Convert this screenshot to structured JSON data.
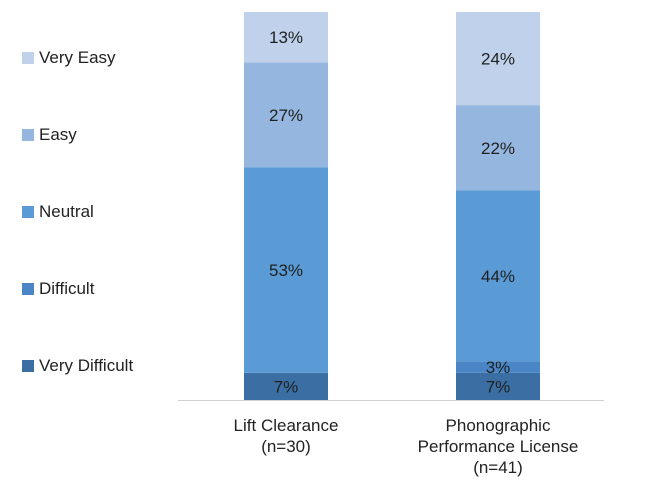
{
  "chart_data": {
    "type": "bar",
    "stacked": true,
    "normalized": true,
    "categories": [
      [
        "Lift Clearance",
        "(n=30)"
      ],
      [
        "Phonographic",
        "Performance License",
        "(n=41)"
      ]
    ],
    "series": [
      {
        "name": "Very Difficult",
        "color": "#3b6fa3",
        "values": [
          7,
          7
        ],
        "labels": [
          "7%",
          "7%"
        ]
      },
      {
        "name": "Difficult",
        "color": "#4a86c5",
        "values": [
          0,
          3
        ],
        "labels": [
          "",
          "3%"
        ]
      },
      {
        "name": "Neutral",
        "color": "#5b9bd5",
        "values": [
          53,
          44
        ],
        "labels": [
          "53%",
          "44%"
        ]
      },
      {
        "name": "Easy",
        "color": "#95b6df",
        "values": [
          27,
          22
        ],
        "labels": [
          "27%",
          "22%"
        ]
      },
      {
        "name": "Very Easy",
        "color": "#bfd1eb",
        "values": [
          13,
          24
        ],
        "labels": [
          "13%",
          "24%"
        ]
      }
    ],
    "legend_order": [
      "Very Easy",
      "Easy",
      "Neutral",
      "Difficult",
      "Very Difficult"
    ],
    "legend_position": "left",
    "ylim": [
      0,
      100
    ],
    "grid": false
  }
}
